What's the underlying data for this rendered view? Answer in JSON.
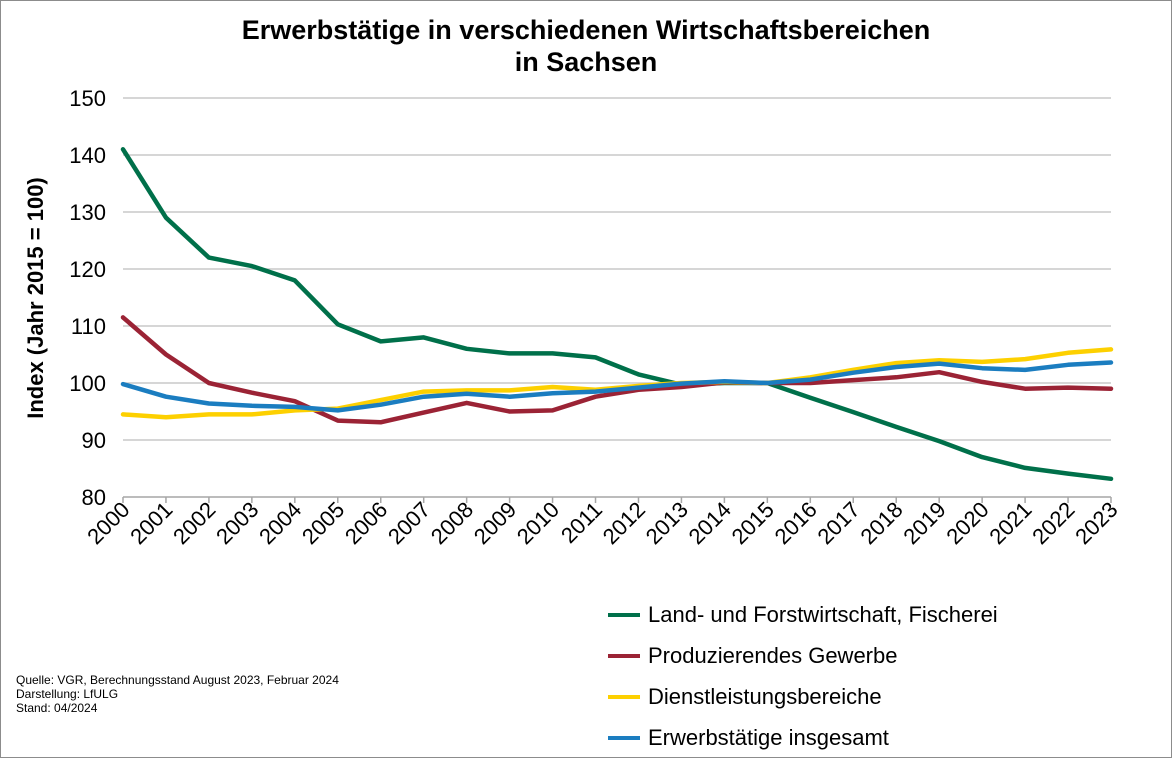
{
  "chart_data": {
    "type": "line",
    "title": "Erwerbstätige in verschiedenen Wirtschaftsbereichen",
    "subtitle": "in Sachsen",
    "xlabel": "",
    "ylabel": "Index (Jahr 2015 = 100)",
    "ylim": [
      80,
      150
    ],
    "yticks": [
      80,
      90,
      100,
      110,
      120,
      130,
      140,
      150
    ],
    "grid": true,
    "legend_position": "bottom-right",
    "categories": [
      "2000",
      "2001",
      "2002",
      "2003",
      "2004",
      "2005",
      "2006",
      "2007",
      "2008",
      "2009",
      "2010",
      "2011",
      "2012",
      "2013",
      "2014",
      "2015",
      "2016",
      "2017",
      "2018",
      "2019",
      "2020",
      "2021",
      "2022",
      "2023"
    ],
    "series": [
      {
        "name": "Land- und Forstwirtschaft, Fischerei",
        "color": "#00704A",
        "values": [
          141.0,
          129.0,
          122.0,
          120.5,
          118.0,
          110.3,
          107.3,
          108.0,
          106.0,
          105.2,
          105.2,
          104.5,
          101.5,
          99.7,
          100.0,
          100.0,
          97.4,
          94.9,
          92.3,
          89.8,
          87.0,
          85.1,
          84.1,
          83.2
        ]
      },
      {
        "name": "Produzierendes Gewerbe",
        "color": "#9B2335",
        "values": [
          111.5,
          105.0,
          100.0,
          98.3,
          96.8,
          93.4,
          93.1,
          94.8,
          96.5,
          95.0,
          95.2,
          97.6,
          98.8,
          99.3,
          100.1,
          100.0,
          100.0,
          100.5,
          101.0,
          101.9,
          100.2,
          99.0,
          99.2,
          99.0
        ]
      },
      {
        "name": "Dienstleistungsbereiche",
        "color": "#FDD000",
        "values": [
          94.5,
          94.0,
          94.5,
          94.5,
          95.2,
          95.5,
          97.0,
          98.5,
          98.7,
          98.7,
          99.3,
          98.8,
          99.5,
          100.0,
          100.2,
          100.0,
          101.0,
          102.3,
          103.5,
          104.0,
          103.7,
          104.2,
          105.3,
          105.9
        ]
      },
      {
        "name": "Erwerbstätige insgesamt",
        "color": "#1B7DC0",
        "values": [
          99.8,
          97.6,
          96.4,
          96.0,
          95.8,
          95.2,
          96.2,
          97.6,
          98.1,
          97.6,
          98.2,
          98.5,
          99.2,
          99.9,
          100.3,
          100.0,
          100.6,
          101.8,
          102.8,
          103.4,
          102.6,
          102.3,
          103.2,
          103.6
        ]
      }
    ]
  },
  "source_notes": [
    "Quelle: VGR, Berechnungsstand August 2023, Februar 2024",
    "Darstellung: LfULG",
    "Stand: 04/2024"
  ]
}
